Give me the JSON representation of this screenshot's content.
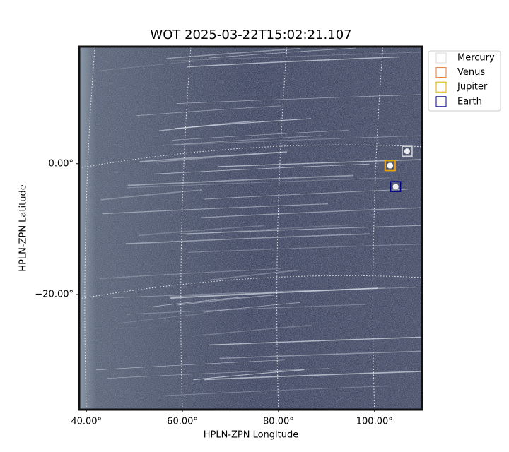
{
  "chart_data": {
    "type": "scatter",
    "title": "WOT 2025-03-22T15:02:21.107",
    "x_label": "HPLN-ZPN Longitude",
    "y_label": "HPLN-ZPN Latitude",
    "xlim": [
      38.5,
      109.9
    ],
    "ylim": [
      -37.6,
      17.9
    ],
    "xticks": [
      {
        "value": 40,
        "label": "40.00°"
      },
      {
        "value": 60,
        "label": "60.00°"
      },
      {
        "value": 80,
        "label": "80.00°"
      },
      {
        "value": 100,
        "label": "100.00°"
      }
    ],
    "yticks": [
      {
        "value": 0,
        "label": "0.00°"
      },
      {
        "value": -20,
        "label": "−20.00°"
      }
    ],
    "grid": true,
    "legend": "outside upper right",
    "series": [
      {
        "name": "Mercury",
        "color": "#d9d9d9",
        "x": [
          106.8
        ],
        "values": [
          1.9
        ]
      },
      {
        "name": "Venus",
        "color": "#e07b39",
        "x": [
          103.2
        ],
        "values": [
          -0.3
        ]
      },
      {
        "name": "Jupiter",
        "color": "#e0a800",
        "x": [
          103.3
        ],
        "values": [
          -0.3
        ]
      },
      {
        "name": "Earth",
        "color": "#000080",
        "x": [
          104.4
        ],
        "values": [
          -3.5
        ]
      }
    ]
  }
}
